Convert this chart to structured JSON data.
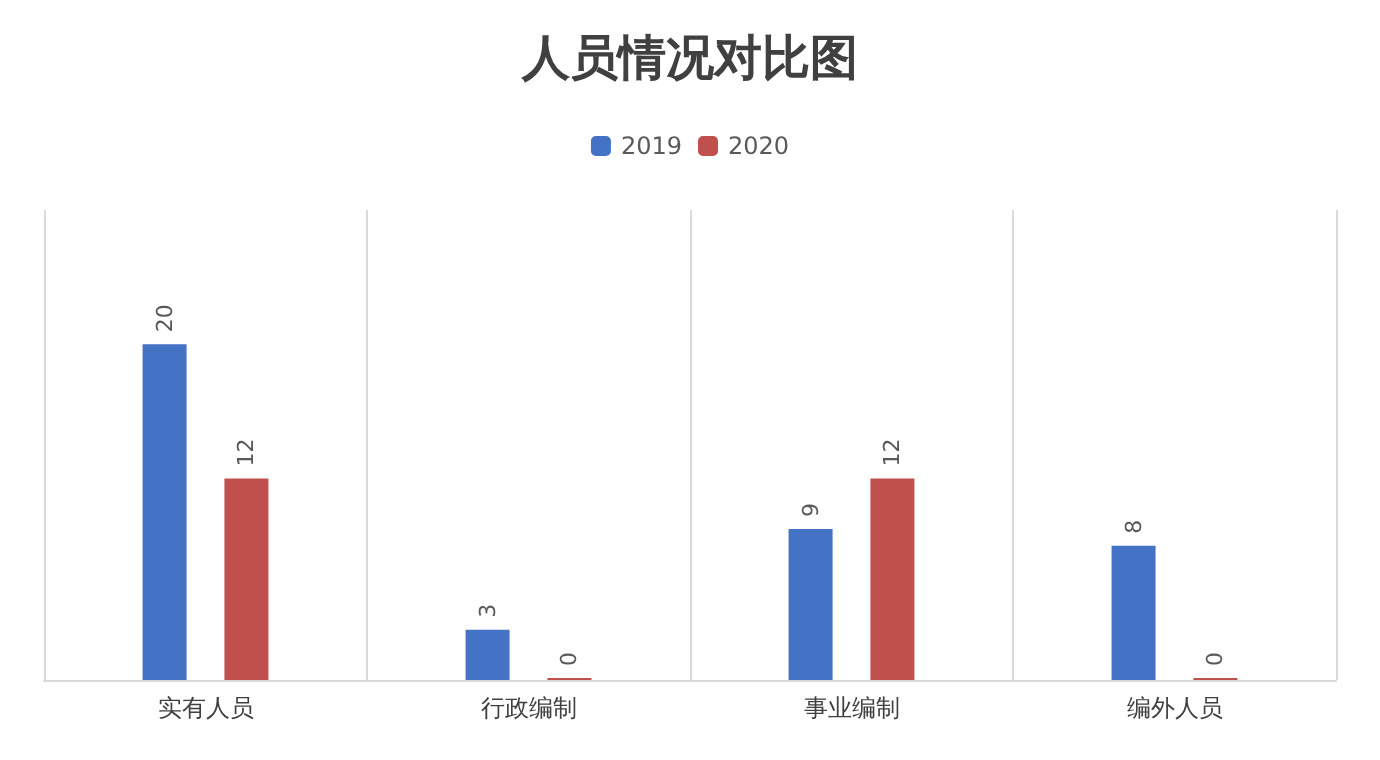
{
  "chart_data": {
    "type": "bar",
    "title": "人员情况对比图",
    "categories": [
      "实有人员",
      "行政编制",
      "事业编制",
      "编外人员"
    ],
    "series": [
      {
        "name": "2019",
        "color": "#4472c4",
        "values": [
          20,
          3,
          9,
          8
        ]
      },
      {
        "name": "2020",
        "color": "#c0504d",
        "values": [
          12,
          0,
          12,
          0
        ]
      }
    ],
    "data_labels": true,
    "grid": "x",
    "legend": "top"
  }
}
